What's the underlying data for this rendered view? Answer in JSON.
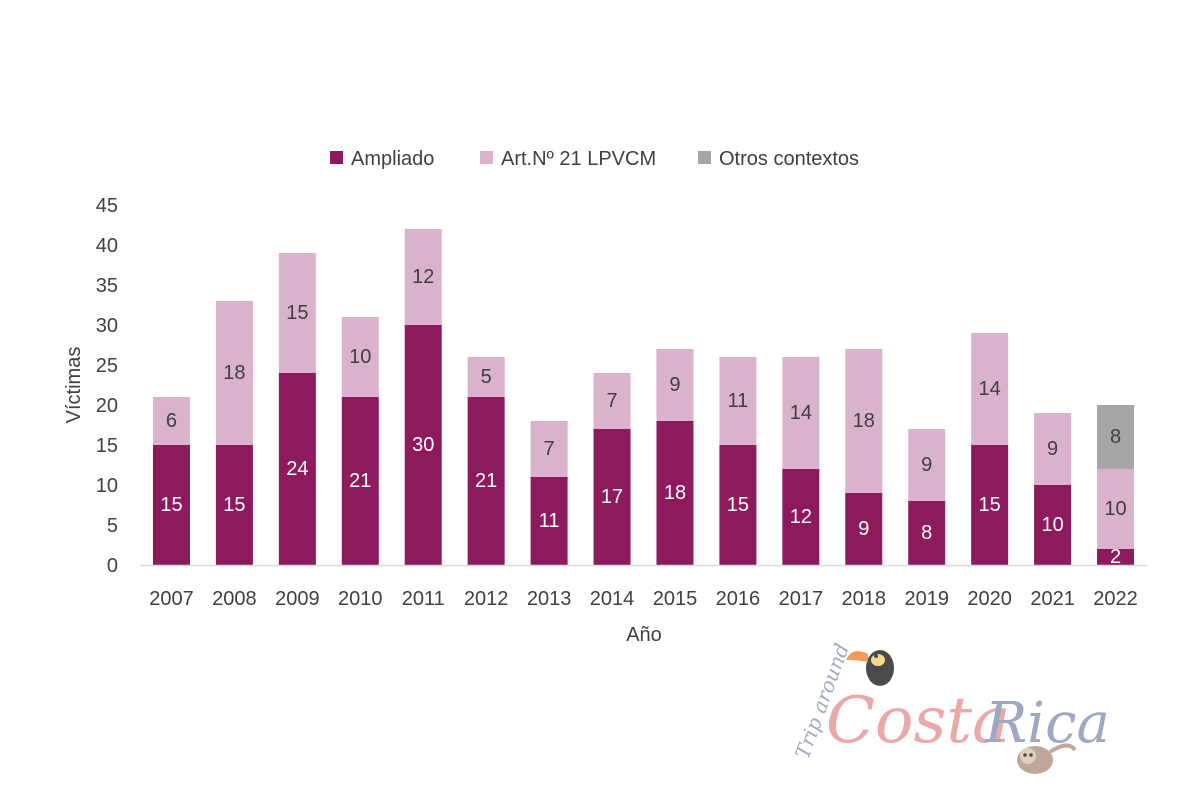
{
  "chart_data": {
    "type": "bar",
    "stacked": true,
    "title": "",
    "xlabel": "Año",
    "ylabel": "Víctimas",
    "ylim": [
      0,
      45
    ],
    "yticks": [
      0,
      5,
      10,
      15,
      20,
      25,
      30,
      35,
      40,
      45
    ],
    "grid": false,
    "legend_position": "top-center",
    "categories": [
      "2007",
      "2008",
      "2009",
      "2010",
      "2011",
      "2012",
      "2013",
      "2014",
      "2015",
      "2016",
      "2017",
      "2018",
      "2019",
      "2020",
      "2021",
      "2022"
    ],
    "series": [
      {
        "name": "Ampliado",
        "color": "#8e1a5e",
        "label_color": "#ffffff",
        "values": [
          15,
          15,
          24,
          21,
          30,
          21,
          11,
          17,
          18,
          15,
          12,
          9,
          8,
          15,
          10,
          2
        ]
      },
      {
        "name": "Art.Nº 21 LPVCM",
        "color": "#dbb2cb",
        "label_color": "#404040",
        "values": [
          6,
          18,
          15,
          10,
          12,
          5,
          7,
          7,
          9,
          11,
          14,
          18,
          9,
          14,
          9,
          10
        ]
      },
      {
        "name": "Otros contextos",
        "color": "#a6a6a6",
        "label_color": "#404040",
        "values": [
          0,
          0,
          0,
          0,
          0,
          0,
          0,
          0,
          0,
          0,
          0,
          0,
          0,
          0,
          0,
          8
        ]
      }
    ]
  },
  "watermark": {
    "script_text": "Trip around",
    "word1": "Costa",
    "word2": "Rica",
    "word1_color": "#e79a9a",
    "word2_color": "#8f9ab8"
  }
}
